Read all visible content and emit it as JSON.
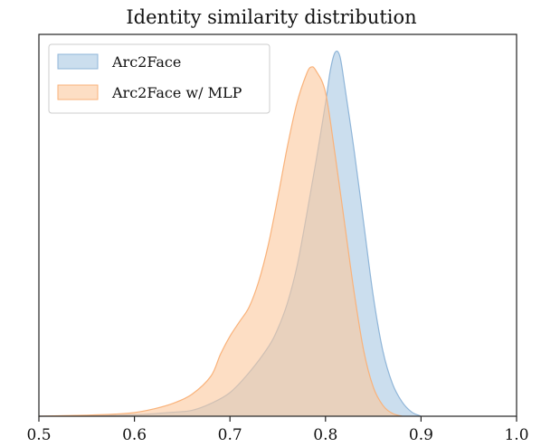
{
  "chart_data": {
    "type": "area",
    "title": "Identity similarity distribution",
    "xlabel": "",
    "ylabel": "",
    "xlim": [
      0.5,
      1.0
    ],
    "ylim": [
      0,
      1
    ],
    "xticks": [
      0.5,
      0.6,
      0.7,
      0.8,
      0.9,
      1.0
    ],
    "xtick_labels": [
      "0.5",
      "0.6",
      "0.7",
      "0.8",
      "0.9",
      "1.0"
    ],
    "grid": false,
    "legend_position": "top-left",
    "series": [
      {
        "name": "Arc2Face",
        "fill_color": "#a8c8e3",
        "line_color": "#8fb5d8",
        "x": [
          0.5,
          0.55,
          0.6,
          0.62,
          0.64,
          0.66,
          0.68,
          0.7,
          0.72,
          0.74,
          0.75,
          0.76,
          0.77,
          0.78,
          0.79,
          0.8,
          0.805,
          0.81,
          0.815,
          0.82,
          0.83,
          0.84,
          0.85,
          0.86,
          0.87,
          0.88,
          0.89,
          0.9
        ],
        "values": [
          0.0,
          0.001,
          0.004,
          0.007,
          0.011,
          0.016,
          0.035,
          0.065,
          0.12,
          0.19,
          0.24,
          0.31,
          0.41,
          0.55,
          0.7,
          0.86,
          0.95,
          1.0,
          0.99,
          0.91,
          0.73,
          0.53,
          0.33,
          0.18,
          0.09,
          0.04,
          0.012,
          0.0
        ]
      },
      {
        "name": "Arc2Face w/ MLP",
        "fill_color": "#fcc89d",
        "line_color": "#f9b27a",
        "x": [
          0.5,
          0.55,
          0.58,
          0.6,
          0.62,
          0.64,
          0.66,
          0.68,
          0.69,
          0.7,
          0.71,
          0.72,
          0.73,
          0.74,
          0.75,
          0.76,
          0.77,
          0.78,
          0.785,
          0.79,
          0.8,
          0.81,
          0.82,
          0.83,
          0.84,
          0.85,
          0.86,
          0.87,
          0.88
        ],
        "values": [
          0.0,
          0.003,
          0.006,
          0.01,
          0.02,
          0.035,
          0.06,
          0.11,
          0.17,
          0.22,
          0.26,
          0.3,
          0.37,
          0.47,
          0.6,
          0.74,
          0.86,
          0.94,
          0.96,
          0.95,
          0.89,
          0.72,
          0.53,
          0.34,
          0.18,
          0.08,
          0.03,
          0.008,
          0.0
        ]
      }
    ]
  }
}
